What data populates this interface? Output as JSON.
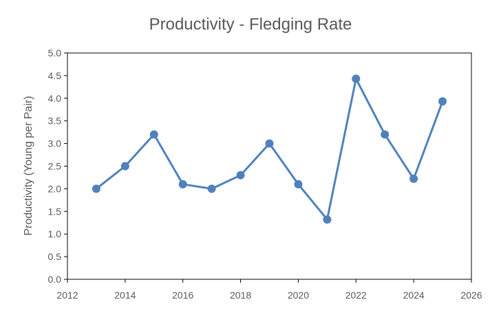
{
  "chart_data": {
    "type": "line",
    "title": "Productivity - Fledging Rate",
    "xlabel": "",
    "ylabel": "Productivity (Young per Pair)",
    "x": [
      2013,
      2014,
      2015,
      2016,
      2017,
      2018,
      2019,
      2020,
      2021,
      2022,
      2023,
      2024,
      2025
    ],
    "series": [
      {
        "name": "",
        "values": [
          2.0,
          2.5,
          3.2,
          2.1,
          2.0,
          2.3,
          3.0,
          2.1,
          1.32,
          4.43,
          3.2,
          2.22,
          3.93
        ],
        "color": "#4F81BD"
      }
    ],
    "xlim": [
      2012,
      2026
    ],
    "ylim": [
      0,
      5.0
    ],
    "xticks": [
      "2012",
      "2014",
      "2016",
      "2018",
      "2020",
      "2022",
      "2024",
      "2026"
    ],
    "yticks": [
      "0.0",
      "0.5",
      "1.0",
      "1.5",
      "2.0",
      "2.5",
      "3.0",
      "3.5",
      "4.0",
      "4.5",
      "5.0"
    ],
    "grid": false,
    "legend": "none",
    "axis_color": "#000000",
    "text_color": "#595959"
  }
}
